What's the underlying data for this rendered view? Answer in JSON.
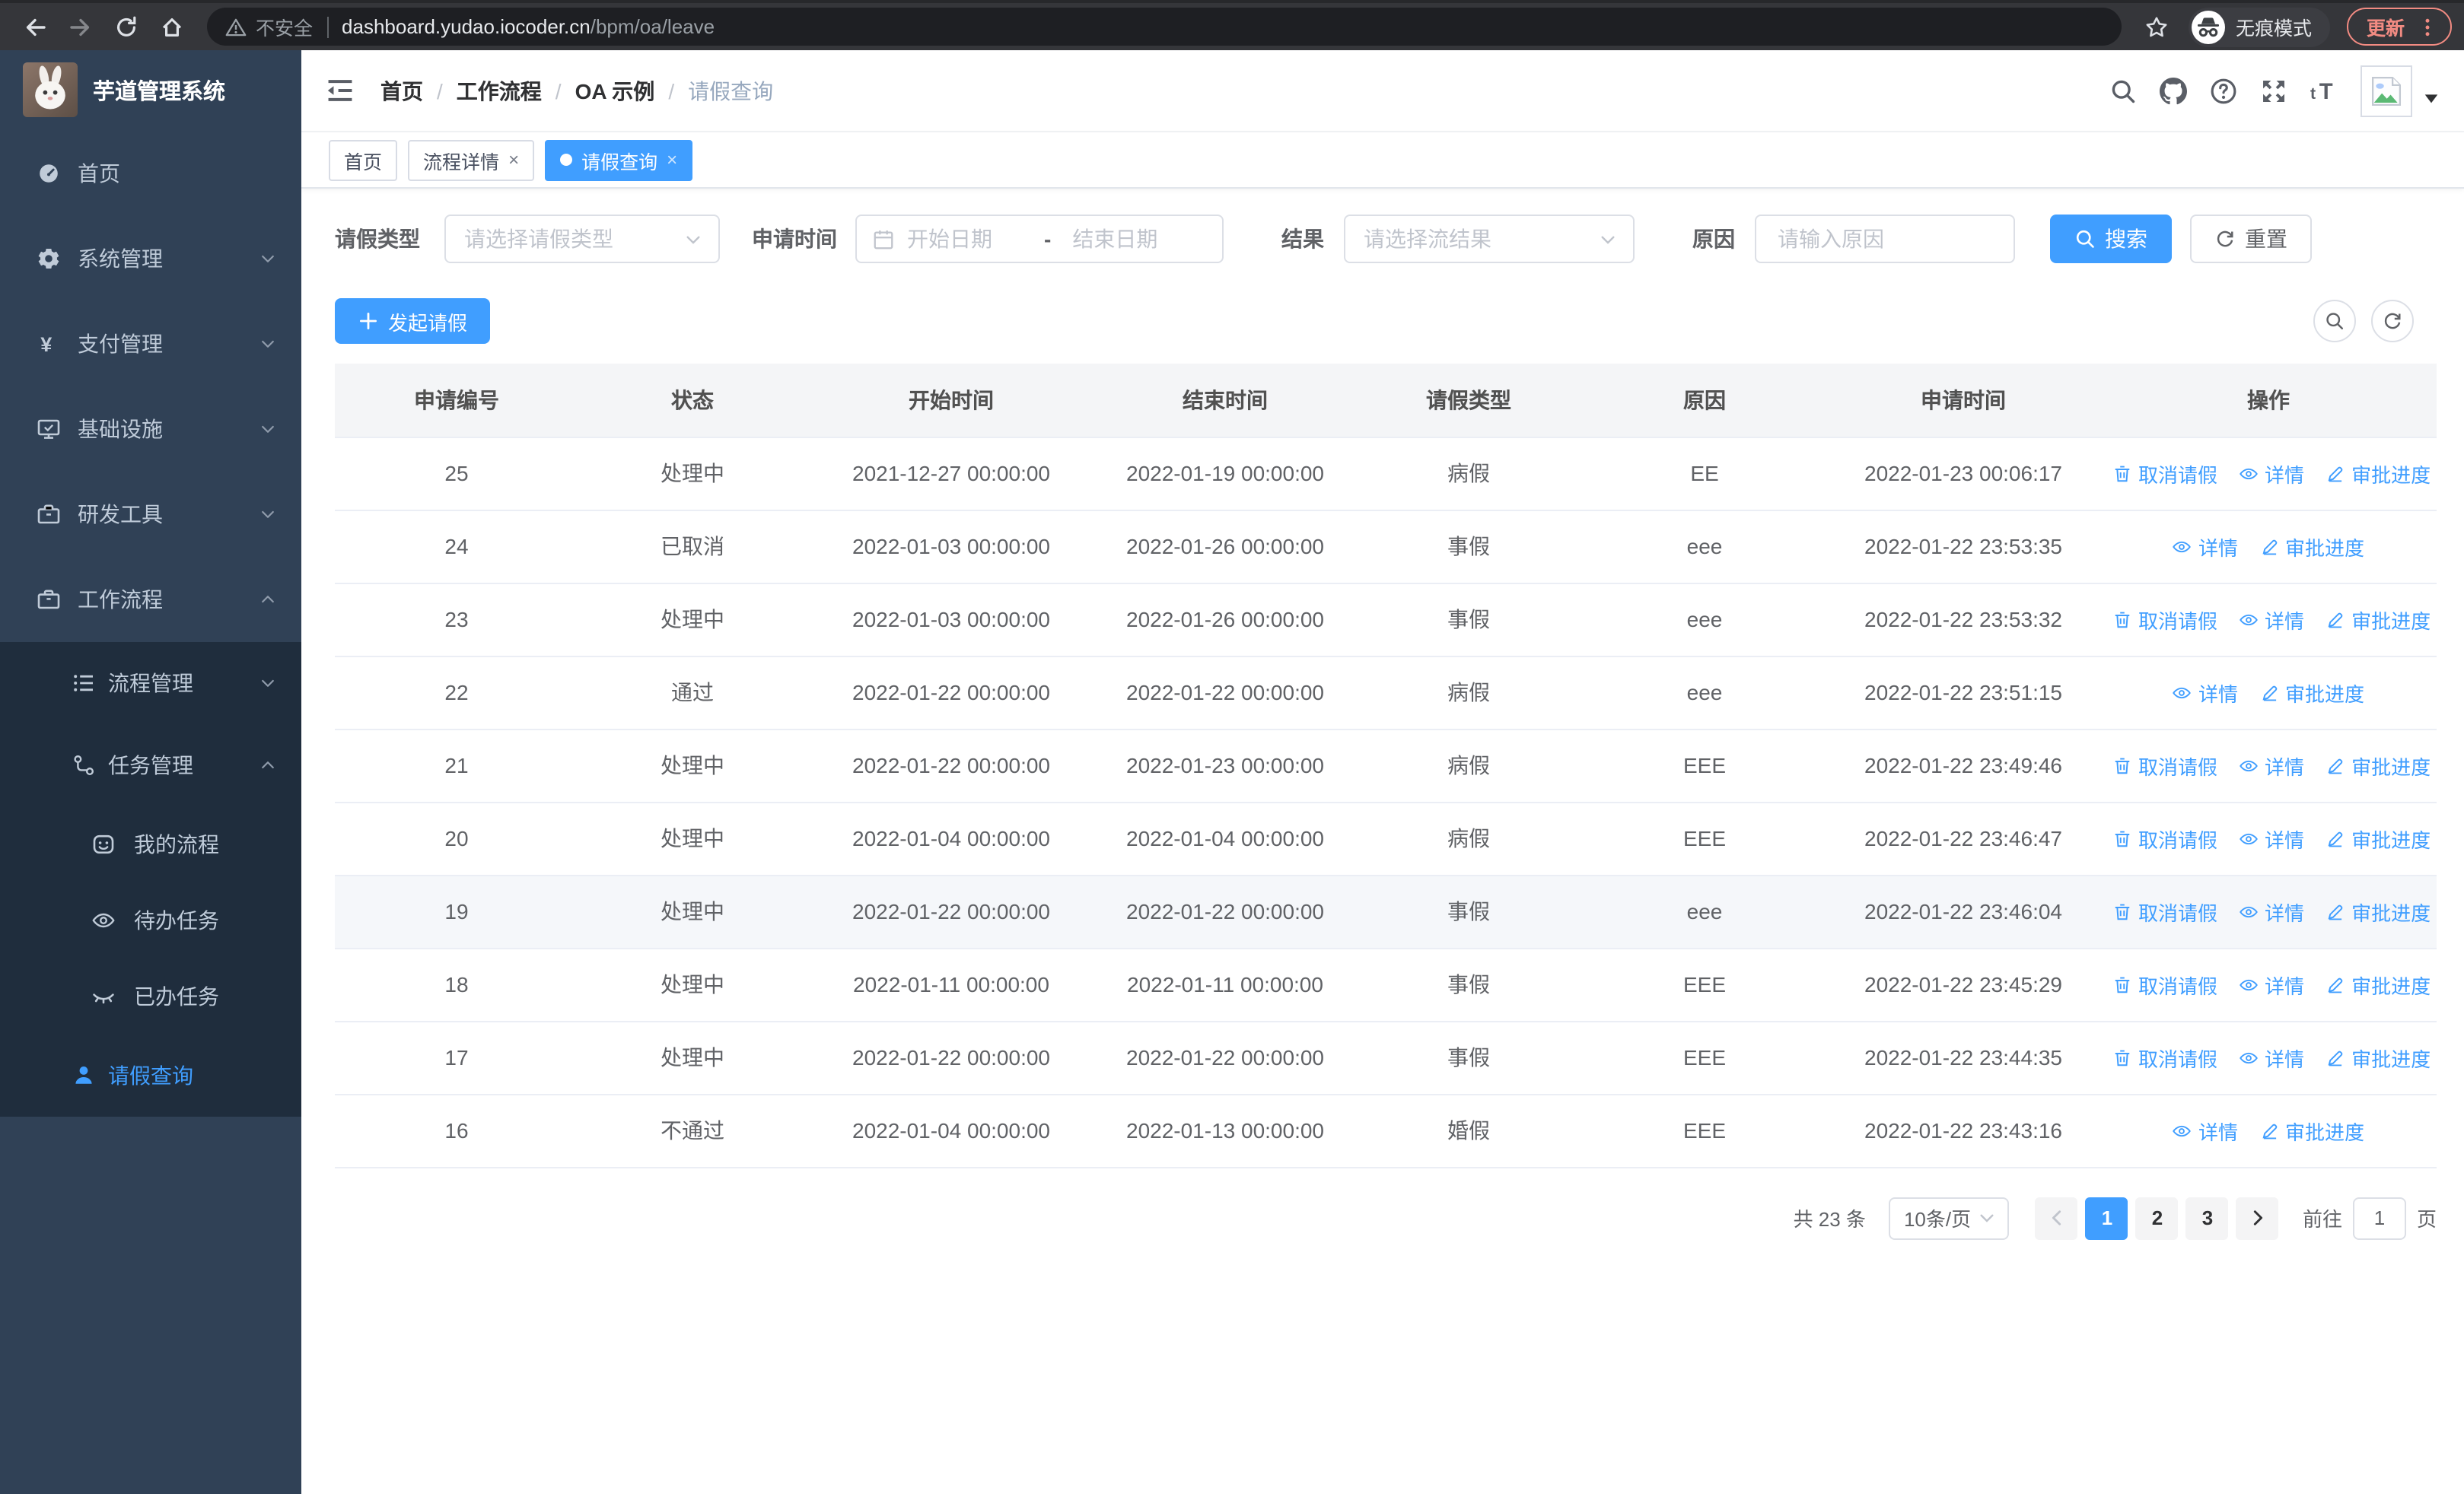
{
  "browser": {
    "security_label": "不安全",
    "url_host": "dashboard.yudao.iocoder.cn",
    "url_path": "/bpm/oa/leave",
    "incognito_label": "无痕模式",
    "update_label": "更新"
  },
  "sidebar": {
    "title": "芋道管理系统",
    "items": [
      {
        "label": "首页",
        "icon": "dashboard-icon",
        "level": 1,
        "chevron": "",
        "dark": false,
        "active": false
      },
      {
        "label": "系统管理",
        "icon": "gear-icon",
        "level": 1,
        "chevron": "down",
        "dark": false,
        "active": false
      },
      {
        "label": "支付管理",
        "icon": "yen-icon",
        "level": 1,
        "chevron": "down",
        "dark": false,
        "active": false
      },
      {
        "label": "基础设施",
        "icon": "monitor-icon",
        "level": 1,
        "chevron": "down",
        "dark": false,
        "active": false
      },
      {
        "label": "研发工具",
        "icon": "toolbox-icon",
        "level": 1,
        "chevron": "down",
        "dark": false,
        "active": false
      },
      {
        "label": "工作流程",
        "icon": "briefcase-icon",
        "level": 1,
        "chevron": "up",
        "dark": false,
        "active": false
      },
      {
        "label": "流程管理",
        "icon": "list-icon",
        "level": 2,
        "chevron": "down",
        "dark": true,
        "active": false
      },
      {
        "label": "任务管理",
        "icon": "flow-icon",
        "level": 2,
        "chevron": "up",
        "dark": true,
        "active": false
      },
      {
        "label": "我的流程",
        "icon": "face-icon",
        "level": 3,
        "chevron": "",
        "dark": true,
        "active": false
      },
      {
        "label": "待办任务",
        "icon": "eye-icon",
        "level": 3,
        "chevron": "",
        "dark": true,
        "active": false
      },
      {
        "label": "已办任务",
        "icon": "eye-closed-icon",
        "level": 3,
        "chevron": "",
        "dark": true,
        "active": false
      },
      {
        "label": "请假查询",
        "icon": "user-icon",
        "level": 2,
        "chevron": "",
        "dark": true,
        "active": true
      }
    ]
  },
  "header": {
    "breadcrumb": [
      {
        "label": "首页",
        "muted": false
      },
      {
        "label": "工作流程",
        "muted": false
      },
      {
        "label": "OA 示例",
        "muted": false
      },
      {
        "label": "请假查询",
        "muted": true
      }
    ],
    "separator": "/",
    "icons": [
      "search-icon",
      "github-icon",
      "question-icon",
      "fullscreen-icon",
      "fontsize-icon"
    ]
  },
  "tabs": [
    {
      "label": "首页",
      "closable": false,
      "active": false
    },
    {
      "label": "流程详情",
      "closable": true,
      "active": false
    },
    {
      "label": "请假查询",
      "closable": true,
      "active": true
    }
  ],
  "filters": {
    "leave_type_label": "请假类型",
    "leave_type_placeholder": "请选择请假类型",
    "apply_time_label": "申请时间",
    "start_date_placeholder": "开始日期",
    "date_separator": "-",
    "end_date_placeholder": "结束日期",
    "result_label": "结果",
    "result_placeholder": "请选择流结果",
    "reason_label": "原因",
    "reason_placeholder": "请输入原因",
    "search_label": "搜索",
    "reset_label": "重置"
  },
  "toolbar": {
    "create_label": "发起请假"
  },
  "table": {
    "columns": [
      "申请编号",
      "状态",
      "开始时间",
      "结束时间",
      "请假类型",
      "原因",
      "申请时间",
      "操作"
    ],
    "action_labels": {
      "cancel": "取消请假",
      "detail": "详情",
      "progress": "审批进度"
    },
    "rows": [
      {
        "id": "25",
        "status": "处理中",
        "start": "2021-12-27 00:00:00",
        "end": "2022-01-19 00:00:00",
        "type": "病假",
        "reason": "EE",
        "apply_time": "2022-01-23 00:06:17",
        "actions": [
          "cancel",
          "detail",
          "progress"
        ],
        "highlighted": false
      },
      {
        "id": "24",
        "status": "已取消",
        "start": "2022-01-03 00:00:00",
        "end": "2022-01-26 00:00:00",
        "type": "事假",
        "reason": "eee",
        "apply_time": "2022-01-22 23:53:35",
        "actions": [
          "detail",
          "progress"
        ],
        "highlighted": false
      },
      {
        "id": "23",
        "status": "处理中",
        "start": "2022-01-03 00:00:00",
        "end": "2022-01-26 00:00:00",
        "type": "事假",
        "reason": "eee",
        "apply_time": "2022-01-22 23:53:32",
        "actions": [
          "cancel",
          "detail",
          "progress"
        ],
        "highlighted": false
      },
      {
        "id": "22",
        "status": "通过",
        "start": "2022-01-22 00:00:00",
        "end": "2022-01-22 00:00:00",
        "type": "病假",
        "reason": "eee",
        "apply_time": "2022-01-22 23:51:15",
        "actions": [
          "detail",
          "progress"
        ],
        "highlighted": false
      },
      {
        "id": "21",
        "status": "处理中",
        "start": "2022-01-22 00:00:00",
        "end": "2022-01-23 00:00:00",
        "type": "病假",
        "reason": "EEE",
        "apply_time": "2022-01-22 23:49:46",
        "actions": [
          "cancel",
          "detail",
          "progress"
        ],
        "highlighted": false
      },
      {
        "id": "20",
        "status": "处理中",
        "start": "2022-01-04 00:00:00",
        "end": "2022-01-04 00:00:00",
        "type": "病假",
        "reason": "EEE",
        "apply_time": "2022-01-22 23:46:47",
        "actions": [
          "cancel",
          "detail",
          "progress"
        ],
        "highlighted": false
      },
      {
        "id": "19",
        "status": "处理中",
        "start": "2022-01-22 00:00:00",
        "end": "2022-01-22 00:00:00",
        "type": "事假",
        "reason": "eee",
        "apply_time": "2022-01-22 23:46:04",
        "actions": [
          "cancel",
          "detail",
          "progress"
        ],
        "highlighted": true
      },
      {
        "id": "18",
        "status": "处理中",
        "start": "2022-01-11 00:00:00",
        "end": "2022-01-11 00:00:00",
        "type": "事假",
        "reason": "EEE",
        "apply_time": "2022-01-22 23:45:29",
        "actions": [
          "cancel",
          "detail",
          "progress"
        ],
        "highlighted": false
      },
      {
        "id": "17",
        "status": "处理中",
        "start": "2022-01-22 00:00:00",
        "end": "2022-01-22 00:00:00",
        "type": "事假",
        "reason": "EEE",
        "apply_time": "2022-01-22 23:44:35",
        "actions": [
          "cancel",
          "detail",
          "progress"
        ],
        "highlighted": false
      },
      {
        "id": "16",
        "status": "不通过",
        "start": "2022-01-04 00:00:00",
        "end": "2022-01-13 00:00:00",
        "type": "婚假",
        "reason": "EEE",
        "apply_time": "2022-01-22 23:43:16",
        "actions": [
          "detail",
          "progress"
        ],
        "highlighted": false
      }
    ]
  },
  "pagination": {
    "total_label": "共 23 条",
    "page_size": "10条/页",
    "pages": [
      "1",
      "2",
      "3"
    ],
    "active_page": "1",
    "goto_label": "前往",
    "goto_value": "1",
    "goto_suffix": "页"
  },
  "colors": {
    "accent": "#409eff",
    "sidebar_bg": "#304156",
    "submenu_bg": "#1f2d3d",
    "update_button": "#f28b82",
    "table_header_bg": "#f4f5f7"
  }
}
